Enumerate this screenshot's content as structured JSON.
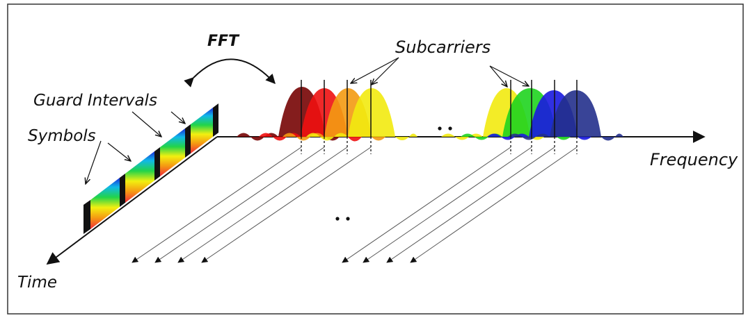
{
  "labels": {
    "fft": "FFT",
    "subcarriers": "Subcarriers",
    "guard_intervals": "Guard Intervals",
    "symbols": "Symbols",
    "frequency": "Frequency",
    "time": "Time"
  },
  "colors": {
    "dark_red": "#7a0a0a",
    "red": "#ee1111",
    "orange": "#f39a12",
    "yellow": "#f2ea10",
    "green": "#1fd41f",
    "blue": "#1a1ae0",
    "navy": "#23308c"
  }
}
